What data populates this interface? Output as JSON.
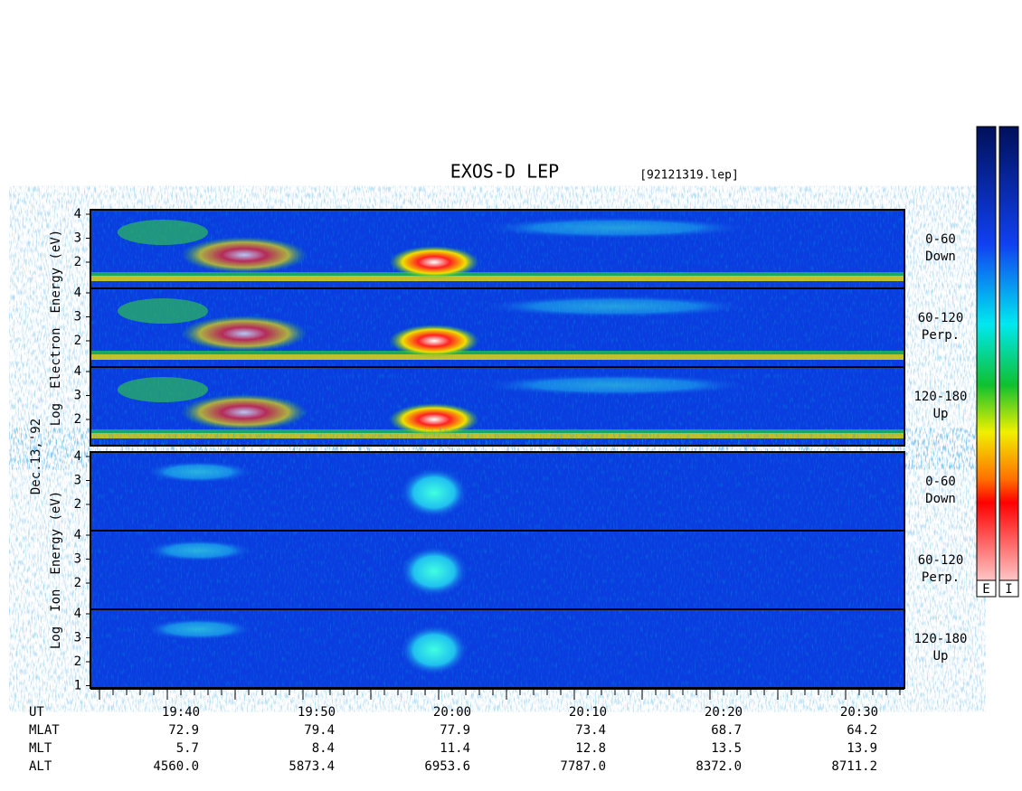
{
  "title": "EXOS-D LEP",
  "file": "[92121319.lep]",
  "date": "Dec.13,'92",
  "blocks": [
    {
      "axis_label": [
        "Log",
        "Electron",
        "Energy (eV)"
      ],
      "panels": [
        {
          "label": [
            "0-60",
            "Down"
          ],
          "ticks": [
            "2",
            "3",
            "4"
          ]
        },
        {
          "label": [
            "60-120",
            "Perp."
          ],
          "ticks": [
            "2",
            "3",
            "4"
          ]
        },
        {
          "label": [
            "120-180",
            "Up"
          ],
          "ticks": [
            "2",
            "3",
            "4"
          ]
        }
      ]
    },
    {
      "axis_label": [
        "Log",
        "Ion",
        "Energy (eV)"
      ],
      "panels": [
        {
          "label": [
            "0-60",
            "Down"
          ],
          "ticks": [
            "2",
            "3",
            "4"
          ]
        },
        {
          "label": [
            "60-120",
            "Perp."
          ],
          "ticks": [
            "2",
            "3",
            "4"
          ]
        },
        {
          "label": [
            "120-180",
            "Up"
          ],
          "ticks": [
            "1",
            "2",
            "3",
            "4"
          ]
        }
      ]
    }
  ],
  "colorbars": [
    "E",
    "I"
  ],
  "time_axis": {
    "rows": [
      {
        "name": "UT",
        "values": [
          "19:40",
          "19:50",
          "20:00",
          "20:10",
          "20:20",
          "20:30"
        ]
      },
      {
        "name": "MLAT",
        "values": [
          "72.9",
          "79.4",
          "77.9",
          "73.4",
          "68.7",
          "64.2"
        ]
      },
      {
        "name": "MLT",
        "values": [
          "5.7",
          "8.4",
          "11.4",
          "12.8",
          "13.5",
          "13.9"
        ]
      },
      {
        "name": "ALT",
        "values": [
          "4560.0",
          "5873.4",
          "6953.6",
          "7787.0",
          "8372.0",
          "8711.2"
        ]
      }
    ]
  }
}
